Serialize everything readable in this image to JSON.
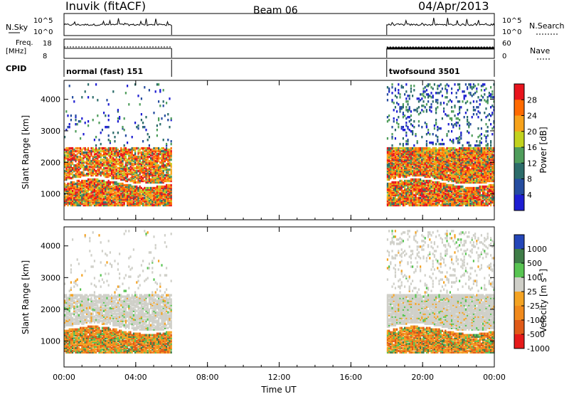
{
  "header": {
    "title": "Inuvik (fitACF)",
    "beam": "Beam 06",
    "date": "04/Apr/2013"
  },
  "top_panels": {
    "nsky_label": "N.Sky",
    "nsky_ticks": [
      "10^5",
      "10^0"
    ],
    "nsearch_label": "N.Search",
    "nsearch_ticks": [
      "10^5",
      "10^0"
    ],
    "freq_label": "Freq.",
    "freq_unit": "[MHz]",
    "freq_ticks": [
      "18",
      "8"
    ],
    "nave_label": "Nave",
    "nave_ticks": [
      "60",
      "0"
    ],
    "cpid_label": "CPID",
    "cpid_segments": [
      {
        "name": "normal (fast) 151",
        "start_h": 0,
        "end_h": 6
      },
      {
        "name": "twofsound 3501",
        "start_h": 18,
        "end_h": 24
      }
    ]
  },
  "chart_data": [
    {
      "type": "heatmap",
      "title": "",
      "xlabel": "Time UT",
      "ylabel": "Slant Range [km]",
      "xlim": [
        0,
        24
      ],
      "ylim": [
        180,
        4600
      ],
      "x_ticks": [
        "00:00",
        "04:00",
        "08:00",
        "12:00",
        "16:00",
        "20:00",
        "00:00"
      ],
      "y_ticks": [
        1000,
        2000,
        3000,
        4000
      ],
      "colorbar": {
        "label": "Power [dB]",
        "ticks": [
          28,
          24,
          20,
          16,
          12,
          8,
          4
        ],
        "colors": [
          "#e8141d",
          "#ff6a00",
          "#f7a21b",
          "#c2d21e",
          "#4f9d5b",
          "#2c6c6a",
          "#254c9f",
          "#1e1ed2"
        ]
      },
      "data_intervals_h": [
        [
          0,
          6
        ],
        [
          18,
          24
        ]
      ]
    },
    {
      "type": "heatmap",
      "title": "",
      "xlabel": "Time UT",
      "ylabel": "Slant Range [km]",
      "xlim": [
        0,
        24
      ],
      "ylim": [
        180,
        4600
      ],
      "x_ticks": [
        "00:00",
        "04:00",
        "08:00",
        "12:00",
        "16:00",
        "20:00",
        "00:00"
      ],
      "y_ticks": [
        1000,
        2000,
        3000,
        4000
      ],
      "colorbar": {
        "label": "Velocity",
        "unit": "[m s",
        "unit_exp": "-1",
        "unit_end": "]",
        "ticks": [
          1000,
          500,
          100,
          25,
          -25,
          -100,
          -500,
          -1000
        ],
        "colors": [
          "#2446b8",
          "#3f7d48",
          "#58c452",
          "#cfcfc8",
          "#f4a323",
          "#f18a1c",
          "#e05a18",
          "#e61a1a"
        ]
      },
      "data_intervals_h": [
        [
          0,
          6
        ],
        [
          18,
          24
        ]
      ]
    }
  ]
}
